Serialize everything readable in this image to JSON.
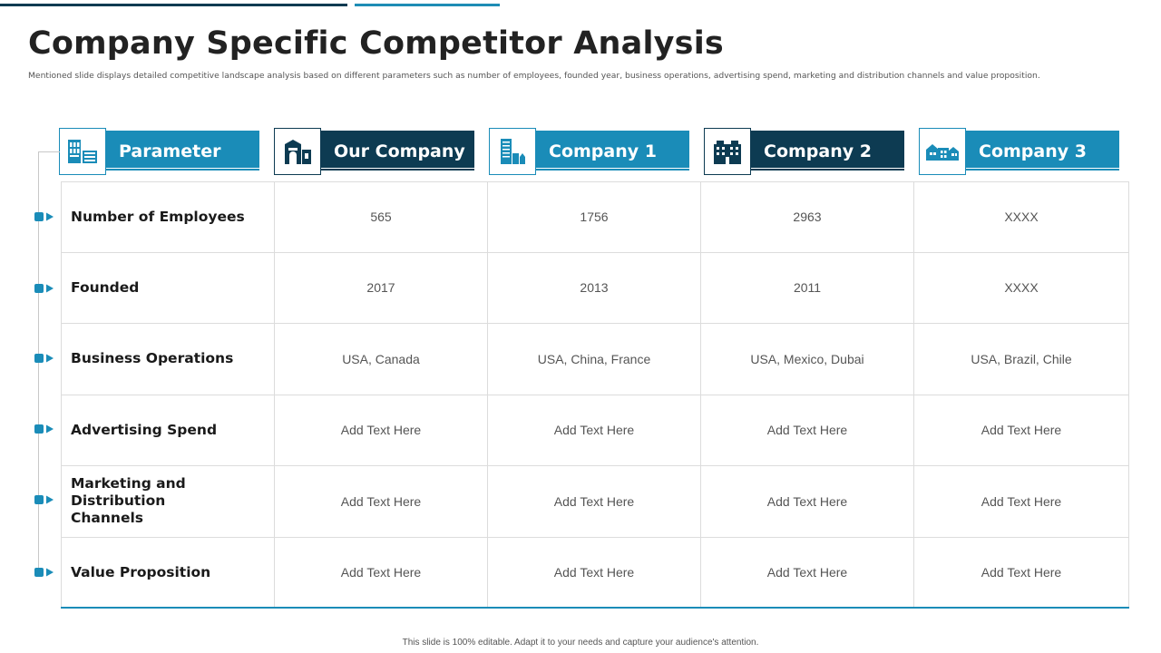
{
  "slide": {
    "title": "Company Specific Competitor Analysis",
    "subtitle": "Mentioned slide displays detailed competitive landscape analysis based on different parameters such as number of employees, founded year, business operations, advertising spend, marketing and distribution channels and value proposition.",
    "footer": "This slide is 100% editable. Adapt it to your needs and capture your audience's attention."
  },
  "colors": {
    "accent_light": "#1a8cb8",
    "accent_dark": "#0d3b52"
  },
  "headers": [
    {
      "label": "Parameter",
      "icon": "building-list-icon",
      "style": "light"
    },
    {
      "label": "Our Company",
      "icon": "office-building-icon",
      "style": "dark"
    },
    {
      "label": "Company 1",
      "icon": "city-buildings-icon",
      "style": "light"
    },
    {
      "label": "Company 2",
      "icon": "skyscraper-icon",
      "style": "dark"
    },
    {
      "label": "Company 3",
      "icon": "houses-icon",
      "style": "light"
    }
  ],
  "rows": [
    {
      "parameter": "Number of Employees",
      "values": [
        "565",
        "1756",
        "2963",
        "XXXX"
      ]
    },
    {
      "parameter": "Founded",
      "values": [
        "2017",
        "2013",
        "2011",
        "XXXX"
      ]
    },
    {
      "parameter": "Business Operations",
      "values": [
        "USA, Canada",
        "USA, China, France",
        "USA, Mexico, Dubai",
        "USA, Brazil, Chile"
      ]
    },
    {
      "parameter": "Advertising Spend",
      "values": [
        "Add Text Here",
        "Add Text Here",
        "Add Text Here",
        "Add Text Here"
      ]
    },
    {
      "parameter": "Marketing and Distribution Channels",
      "values": [
        "Add Text Here",
        "Add Text Here",
        "Add Text Here",
        "Add Text Here"
      ]
    },
    {
      "parameter": "Value Proposition",
      "values": [
        "Add Text Here",
        "Add Text Here",
        "Add Text Here",
        "Add Text Here"
      ]
    }
  ]
}
